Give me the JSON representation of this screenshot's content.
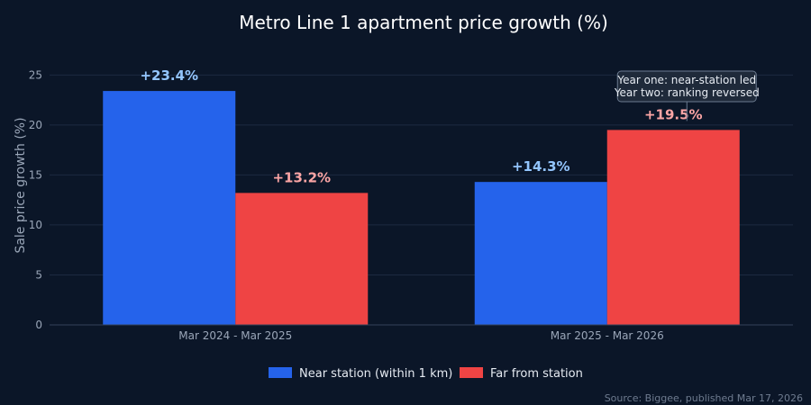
{
  "chart_data": {
    "type": "bar",
    "title": "Metro Line 1 apartment price growth (%)",
    "xlabel": "",
    "ylabel": "Sale price growth (%)",
    "ylim": [
      0,
      28
    ],
    "yticks": [
      0,
      5,
      10,
      15,
      20,
      25
    ],
    "grid": true,
    "legend_position": "bottom",
    "categories": [
      "Mar 2024 - Mar 2025",
      "Mar 2025 - Mar 2026"
    ],
    "series": [
      {
        "name": "Near station (within 1 km)",
        "color": "#2563eb",
        "label_color": "#93c5fd",
        "values": [
          23.4,
          14.3
        ],
        "labels": [
          "+23.4%",
          "+14.3%"
        ]
      },
      {
        "name": "Far from station",
        "color": "#ef4444",
        "label_color": "#fca5a5",
        "values": [
          13.2,
          19.5
        ],
        "labels": [
          "+13.2%",
          "+19.5%"
        ]
      }
    ],
    "annotation": {
      "lines": [
        "Year one: near-station led",
        "Year two: ranking reversed"
      ],
      "target_series": 1,
      "target_category": 1
    },
    "source": "Source: Biggee, published Mar 17, 2026"
  }
}
